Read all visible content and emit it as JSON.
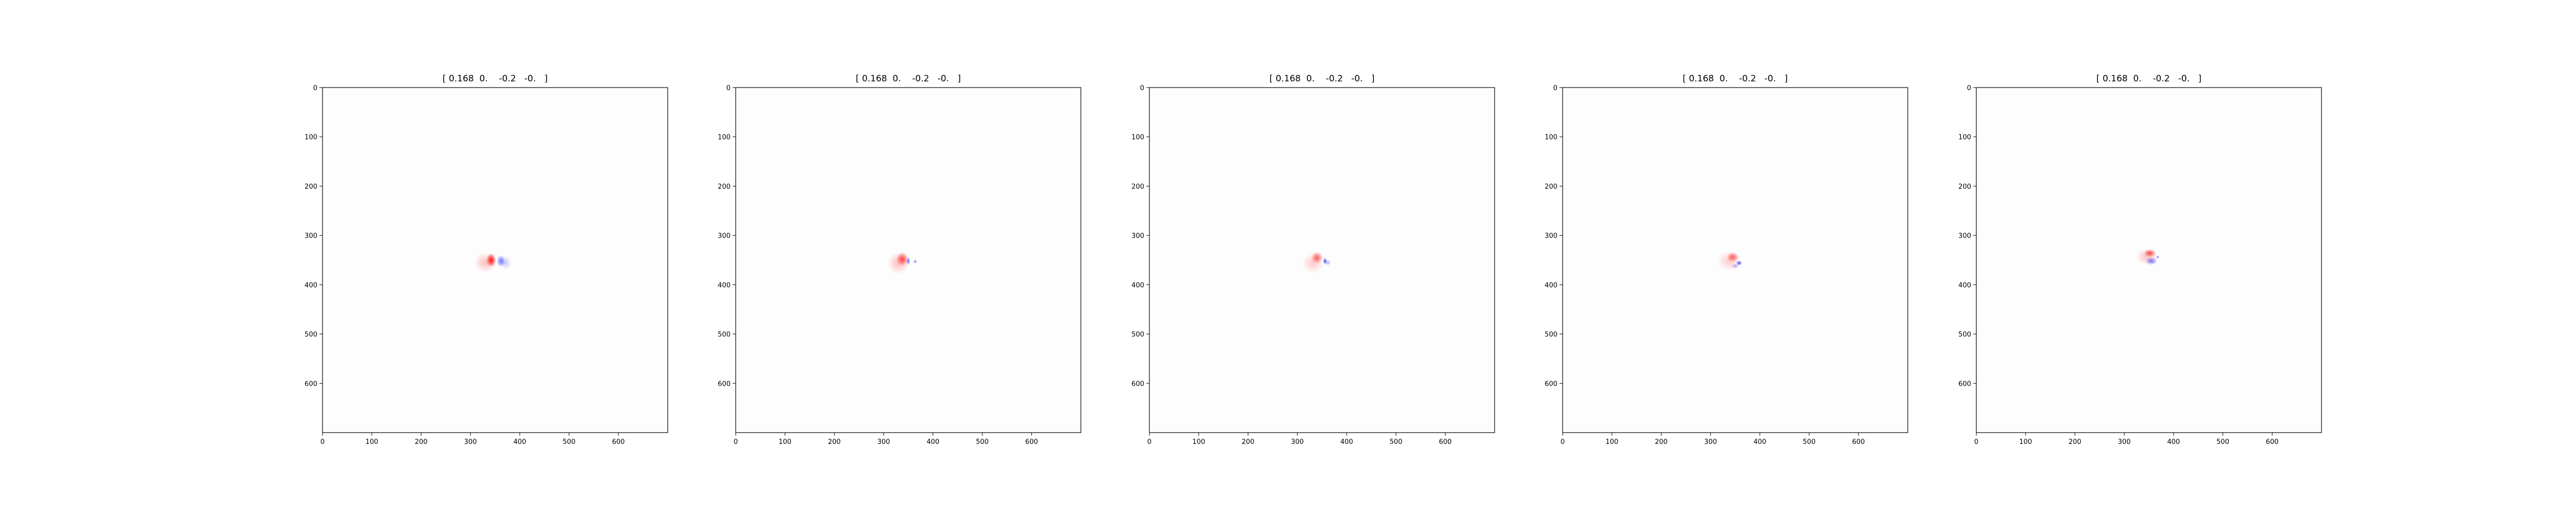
{
  "figure": {
    "background": "#ffffff",
    "panel_count": 5
  },
  "chart_data": [
    {
      "type": "heatmap",
      "title": "[ 0.168  0.    -0.2   -0.   ]",
      "xlabel": "",
      "ylabel": "",
      "xlim": [
        0,
        700
      ],
      "ylim": [
        700,
        0
      ],
      "xticks": [
        0,
        100,
        200,
        300,
        400,
        500,
        600
      ],
      "yticks": [
        0,
        100,
        200,
        300,
        400,
        500,
        600
      ],
      "grid": false,
      "colormap": "bwr",
      "positive_color": "#ff0000",
      "negative_color": "#0000ff",
      "features": [
        {
          "x": 342,
          "y": 350,
          "sign": 1,
          "strength": 0.95,
          "rx": 10,
          "ry": 14
        },
        {
          "x": 330,
          "y": 355,
          "sign": 1,
          "strength": 0.25,
          "rx": 22,
          "ry": 20
        },
        {
          "x": 362,
          "y": 352,
          "sign": -1,
          "strength": 0.55,
          "rx": 9,
          "ry": 12
        },
        {
          "x": 372,
          "y": 356,
          "sign": -1,
          "strength": 0.2,
          "rx": 10,
          "ry": 14
        }
      ]
    },
    {
      "type": "heatmap",
      "title": "[ 0.168  0.    -0.2   -0.   ]",
      "xlabel": "",
      "ylabel": "",
      "xlim": [
        0,
        700
      ],
      "ylim": [
        700,
        0
      ],
      "xticks": [
        0,
        100,
        200,
        300,
        400,
        500,
        600
      ],
      "yticks": [
        0,
        100,
        200,
        300,
        400,
        500,
        600
      ],
      "grid": false,
      "colormap": "bwr",
      "positive_color": "#ff0000",
      "negative_color": "#0000ff",
      "features": [
        {
          "x": 338,
          "y": 348,
          "sign": 1,
          "strength": 0.7,
          "rx": 12,
          "ry": 14
        },
        {
          "x": 330,
          "y": 356,
          "sign": 1,
          "strength": 0.25,
          "rx": 22,
          "ry": 22
        },
        {
          "x": 350,
          "y": 352,
          "sign": -1,
          "strength": 0.6,
          "rx": 4,
          "ry": 8
        },
        {
          "x": 364,
          "y": 353,
          "sign": -1,
          "strength": 0.5,
          "rx": 4,
          "ry": 4
        }
      ]
    },
    {
      "type": "heatmap",
      "title": "[ 0.168  0.    -0.2   -0.   ]",
      "xlabel": "",
      "ylabel": "",
      "xlim": [
        0,
        700
      ],
      "ylim": [
        700,
        0
      ],
      "xticks": [
        0,
        100,
        200,
        300,
        400,
        500,
        600
      ],
      "yticks": [
        0,
        100,
        200,
        300,
        400,
        500,
        600
      ],
      "grid": false,
      "colormap": "bwr",
      "positive_color": "#ff0000",
      "negative_color": "#0000ff",
      "features": [
        {
          "x": 340,
          "y": 345,
          "sign": 1,
          "strength": 0.6,
          "rx": 12,
          "ry": 12
        },
        {
          "x": 332,
          "y": 356,
          "sign": 1,
          "strength": 0.2,
          "rx": 22,
          "ry": 20
        },
        {
          "x": 356,
          "y": 352,
          "sign": -1,
          "strength": 0.75,
          "rx": 4,
          "ry": 7
        },
        {
          "x": 362,
          "y": 355,
          "sign": -1,
          "strength": 0.3,
          "rx": 6,
          "ry": 6
        }
      ]
    },
    {
      "type": "heatmap",
      "title": "[ 0.168  0.    -0.2   -0.   ]",
      "xlabel": "",
      "ylabel": "",
      "xlim": [
        0,
        700
      ],
      "ylim": [
        700,
        0
      ],
      "xticks": [
        0,
        100,
        200,
        300,
        400,
        500,
        600
      ],
      "yticks": [
        0,
        100,
        200,
        300,
        400,
        500,
        600
      ],
      "grid": false,
      "colormap": "bwr",
      "positive_color": "#ff0000",
      "negative_color": "#0000ff",
      "features": [
        {
          "x": 345,
          "y": 344,
          "sign": 1,
          "strength": 0.6,
          "rx": 12,
          "ry": 10
        },
        {
          "x": 338,
          "y": 352,
          "sign": 1,
          "strength": 0.2,
          "rx": 24,
          "ry": 20
        },
        {
          "x": 358,
          "y": 356,
          "sign": -1,
          "strength": 0.7,
          "rx": 6,
          "ry": 5
        },
        {
          "x": 350,
          "y": 362,
          "sign": -1,
          "strength": 0.3,
          "rx": 8,
          "ry": 5
        }
      ]
    },
    {
      "type": "heatmap",
      "title": "[ 0.168  0.    -0.2   -0.   ]",
      "xlabel": "",
      "ylabel": "",
      "xlim": [
        0,
        700
      ],
      "ylim": [
        700,
        0
      ],
      "xticks": [
        0,
        100,
        200,
        300,
        400,
        500,
        600
      ],
      "yticks": [
        0,
        100,
        200,
        300,
        400,
        500,
        600
      ],
      "grid": false,
      "colormap": "bwr",
      "positive_color": "#ff0000",
      "negative_color": "#0000ff",
      "features": [
        {
          "x": 352,
          "y": 336,
          "sign": 1,
          "strength": 0.7,
          "rx": 12,
          "ry": 8
        },
        {
          "x": 346,
          "y": 343,
          "sign": 1,
          "strength": 0.25,
          "rx": 22,
          "ry": 16
        },
        {
          "x": 355,
          "y": 352,
          "sign": -1,
          "strength": 0.5,
          "rx": 12,
          "ry": 8
        },
        {
          "x": 368,
          "y": 344,
          "sign": -1,
          "strength": 0.6,
          "rx": 3,
          "ry": 3
        }
      ]
    }
  ]
}
